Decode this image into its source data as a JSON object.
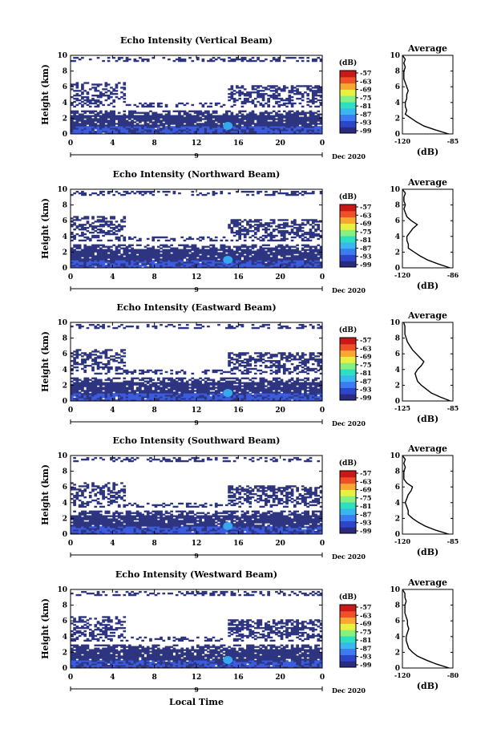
{
  "figure": {
    "xlabel": "Local Time",
    "ylabel": "Height (km)",
    "date_label": "Dec 2020",
    "day_marker": "9",
    "colorbar_unit": "(dB)",
    "colorbar_ticks": [
      "-57",
      "-63",
      "-69",
      "-75",
      "-81",
      "-87",
      "-93",
      "-99"
    ],
    "average_title": "Average",
    "average_xlabel": "(dB)"
  },
  "colors": {
    "echo_main": "#2e3580",
    "echo_strong": "#3c5ce0",
    "echo_peak": "#36a8f0",
    "colorbar": [
      "#2a2b80",
      "#2d45c8",
      "#3c7cf0",
      "#39b8f0",
      "#2ee0c0",
      "#86f080",
      "#e8f040",
      "#f8a830",
      "#f05028",
      "#c81818"
    ]
  },
  "chart_data": [
    {
      "type": "heatmap",
      "title": "Echo Intensity (Vertical Beam)",
      "xlim": [
        0,
        24
      ],
      "ylim": [
        0,
        10
      ],
      "xticks": [
        "0",
        "4",
        "8",
        "12",
        "16",
        "20",
        "0"
      ],
      "yticks": [
        "0",
        "2",
        "4",
        "6",
        "8",
        "10"
      ],
      "average": {
        "xticks": [
          "-120",
          "-85"
        ],
        "xlim": [
          -120,
          -85
        ],
        "height": [
          0,
          0.5,
          1,
          1.5,
          2,
          2.5,
          3,
          3.5,
          4,
          4.5,
          5,
          5.5,
          6,
          6.5,
          7,
          7.5,
          8,
          8.5,
          9,
          9.5,
          10
        ],
        "value": [
          -88,
          -97,
          -105,
          -110,
          -114,
          -118,
          -117,
          -118,
          -118,
          -117,
          -117,
          -116,
          -117,
          -118,
          -119,
          -119,
          -119,
          -118,
          -119,
          -118,
          -120
        ]
      }
    },
    {
      "type": "heatmap",
      "title": "Echo Intensity (Northward Beam)",
      "xlim": [
        0,
        24
      ],
      "ylim": [
        0,
        10
      ],
      "xticks": [
        "0",
        "4",
        "8",
        "12",
        "16",
        "20",
        "0"
      ],
      "yticks": [
        "0",
        "2",
        "4",
        "6",
        "8",
        "10"
      ],
      "average": {
        "xticks": [
          "-120",
          "-86"
        ],
        "xlim": [
          -120,
          -86
        ],
        "height": [
          0,
          0.5,
          1,
          1.5,
          2,
          2.5,
          3,
          3.5,
          4,
          4.5,
          5,
          5.5,
          6,
          6.5,
          7,
          7.5,
          8,
          8.5,
          9,
          9.5,
          10
        ],
        "value": [
          -88,
          -96,
          -103,
          -108,
          -112,
          -116,
          -116,
          -117,
          -117,
          -115,
          -113,
          -110,
          -114,
          -117,
          -118,
          -119,
          -118,
          -119,
          -119,
          -118,
          -120
        ]
      }
    },
    {
      "type": "heatmap",
      "title": "Echo Intensity (Eastward Beam)",
      "xlim": [
        0,
        24
      ],
      "ylim": [
        0,
        10
      ],
      "xticks": [
        "0",
        "4",
        "8",
        "12",
        "16",
        "20",
        "0"
      ],
      "yticks": [
        "0",
        "2",
        "4",
        "6",
        "8",
        "10"
      ],
      "average": {
        "xticks": [
          "-125",
          "-85"
        ],
        "xlim": [
          -125,
          -85
        ],
        "height": [
          0,
          0.5,
          1,
          1.5,
          2,
          2.5,
          3,
          3.5,
          4,
          4.5,
          5,
          5.5,
          6,
          6.5,
          7,
          7.5,
          8,
          8.5,
          9,
          9.5,
          10
        ],
        "value": [
          -87,
          -95,
          -102,
          -106,
          -110,
          -113,
          -114,
          -115,
          -113,
          -110,
          -108,
          -111,
          -114,
          -117,
          -119,
          -121,
          -122,
          -123,
          -123,
          -123,
          -124
        ]
      }
    },
    {
      "type": "heatmap",
      "title": "Echo Intensity (Southward Beam)",
      "xlim": [
        0,
        24
      ],
      "ylim": [
        0,
        10
      ],
      "xticks": [
        "0",
        "4",
        "8",
        "12",
        "16",
        "20",
        "0"
      ],
      "yticks": [
        "0",
        "2",
        "4",
        "6",
        "8",
        "10"
      ],
      "average": {
        "xticks": [
          "-120",
          "-85"
        ],
        "xlim": [
          -120,
          -85
        ],
        "height": [
          0,
          0.5,
          1,
          1.5,
          2,
          2.5,
          3,
          3.5,
          4,
          4.5,
          5,
          5.5,
          6,
          6.5,
          7,
          7.5,
          8,
          8.5,
          9,
          9.5,
          10
        ],
        "value": [
          -88,
          -97,
          -104,
          -109,
          -113,
          -116,
          -116,
          -117,
          -118,
          -117,
          -116,
          -114,
          -113,
          -117,
          -119,
          -119,
          -119,
          -118,
          -119,
          -118,
          -120
        ]
      }
    },
    {
      "type": "heatmap",
      "title": "Echo Intensity (Westward Beam)",
      "xlim": [
        0,
        24
      ],
      "ylim": [
        0,
        10
      ],
      "xticks": [
        "0",
        "4",
        "8",
        "12",
        "16",
        "20",
        "0"
      ],
      "yticks": [
        "0",
        "2",
        "4",
        "6",
        "8",
        "10"
      ],
      "average": {
        "xticks": [
          "-120",
          "-80"
        ],
        "xlim": [
          -120,
          -80
        ],
        "height": [
          0,
          0.5,
          1,
          1.5,
          2,
          2.5,
          3,
          3.5,
          4,
          4.5,
          5,
          5.5,
          6,
          6.5,
          7,
          7.5,
          8,
          8.5,
          9,
          9.5,
          10
        ],
        "value": [
          -83,
          -93,
          -101,
          -108,
          -112,
          -115,
          -116,
          -117,
          -117,
          -116,
          -115,
          -116,
          -116,
          -117,
          -118,
          -118,
          -118,
          -117,
          -118,
          -118,
          -120
        ]
      }
    }
  ]
}
